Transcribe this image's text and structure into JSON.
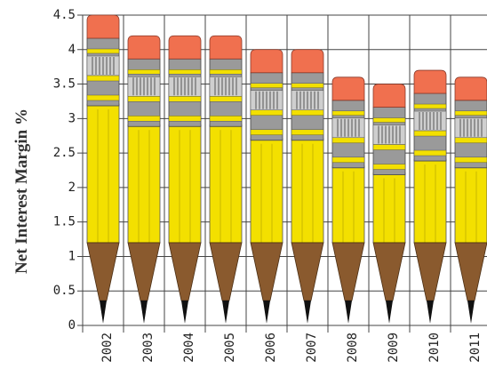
{
  "chart_data": {
    "type": "pictogram-bar",
    "y_label": "Net Interest Margin %",
    "categories": [
      "2002",
      "2003",
      "2004",
      "2005",
      "2006",
      "2007",
      "2008",
      "2009",
      "2010",
      "2011"
    ],
    "values": [
      4.5,
      4.2,
      4.2,
      4.2,
      4.0,
      4.0,
      3.6,
      3.5,
      3.7,
      3.6
    ],
    "ylim": [
      0,
      4.5
    ],
    "yticks": [
      0,
      0.5,
      1,
      1.5,
      2,
      2.5,
      3,
      3.5,
      4,
      4.5
    ],
    "grid": true
  }
}
